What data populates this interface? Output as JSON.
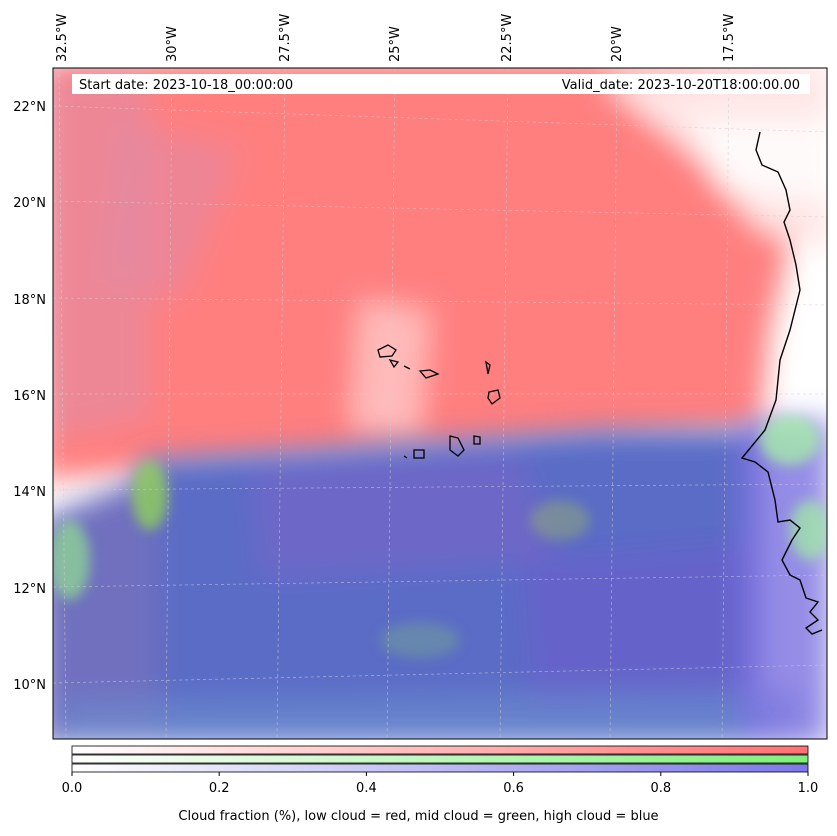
{
  "map": {
    "start_label": "Start date: 2023-10-18_00:00:00",
    "valid_label": "Valid_date: 2023-10-20T18:00:00.00",
    "lon_ticks": [
      "32.5°W",
      "30°W",
      "27.5°W",
      "25°W",
      "22.5°W",
      "20°W",
      "17.5°W"
    ],
    "lat_ticks": [
      "22°N",
      "20°N",
      "18°N",
      "16°N",
      "14°N",
      "12°N",
      "10°N"
    ],
    "gridlines": true,
    "colors": {
      "low_cloud": "#ff8080",
      "mid_cloud": "#80ff80",
      "high_cloud": "#8080ff"
    }
  },
  "colorbar": {
    "ticks": [
      "0.0",
      "0.2",
      "0.4",
      "0.6",
      "0.8",
      "1.0"
    ],
    "caption": "Cloud fraction (%), low cloud = red, mid cloud = green, high cloud = blue",
    "bars": [
      {
        "name": "low-cloud",
        "color": "#ff6f6f"
      },
      {
        "name": "mid-cloud",
        "color": "#7ef07a"
      },
      {
        "name": "high-cloud",
        "color": "#7d78e8"
      }
    ]
  }
}
